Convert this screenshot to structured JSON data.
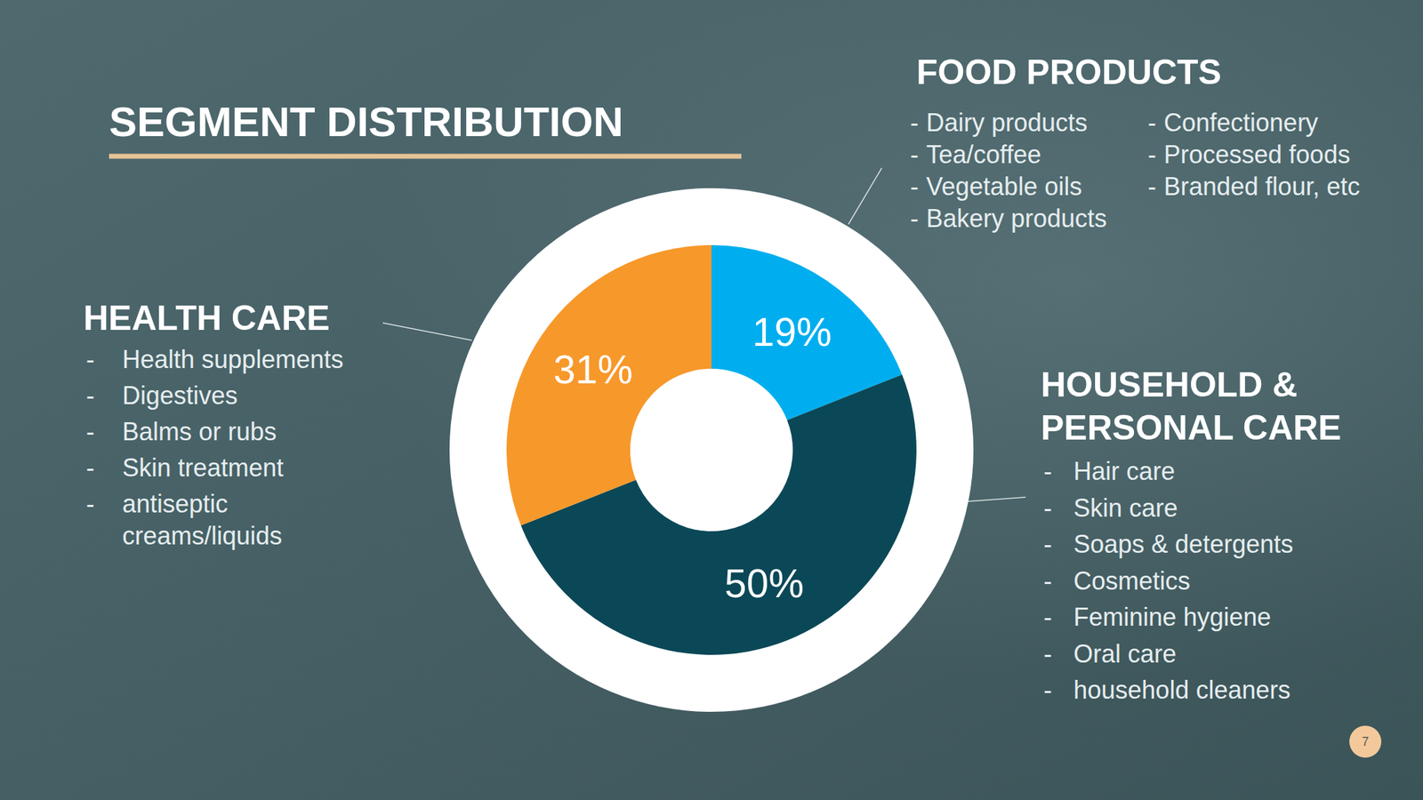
{
  "chart_data": {
    "type": "donut",
    "title": "SEGMENT DISTRIBUTION",
    "categories": [
      "FOOD PRODUCTS",
      "HOUSEHOLD & PERSONAL CARE",
      "HEALTH CARE"
    ],
    "values": [
      19,
      50,
      31
    ],
    "value_labels": [
      "19%",
      "50%",
      "31%"
    ],
    "colors": [
      "#00aeef",
      "#0b4857",
      "#f7982a"
    ],
    "data_labels": true,
    "bullet": "-",
    "items": [
      [
        "Dairy products",
        "Tea/coffee",
        "Vegetable oils",
        "Bakery products",
        "Confectionery",
        "Processed foods",
        "Branded flour, etc"
      ],
      [
        "Hair care",
        "Skin care",
        "Soaps & detergents",
        "Cosmetics",
        "Feminine hygiene",
        "Oral care",
        "household cleaners"
      ],
      [
        "Health supplements",
        "Digestives",
        "Balms or rubs",
        "Skin treatment",
        "antiseptic creams/liquids"
      ]
    ]
  },
  "page_number": "7"
}
